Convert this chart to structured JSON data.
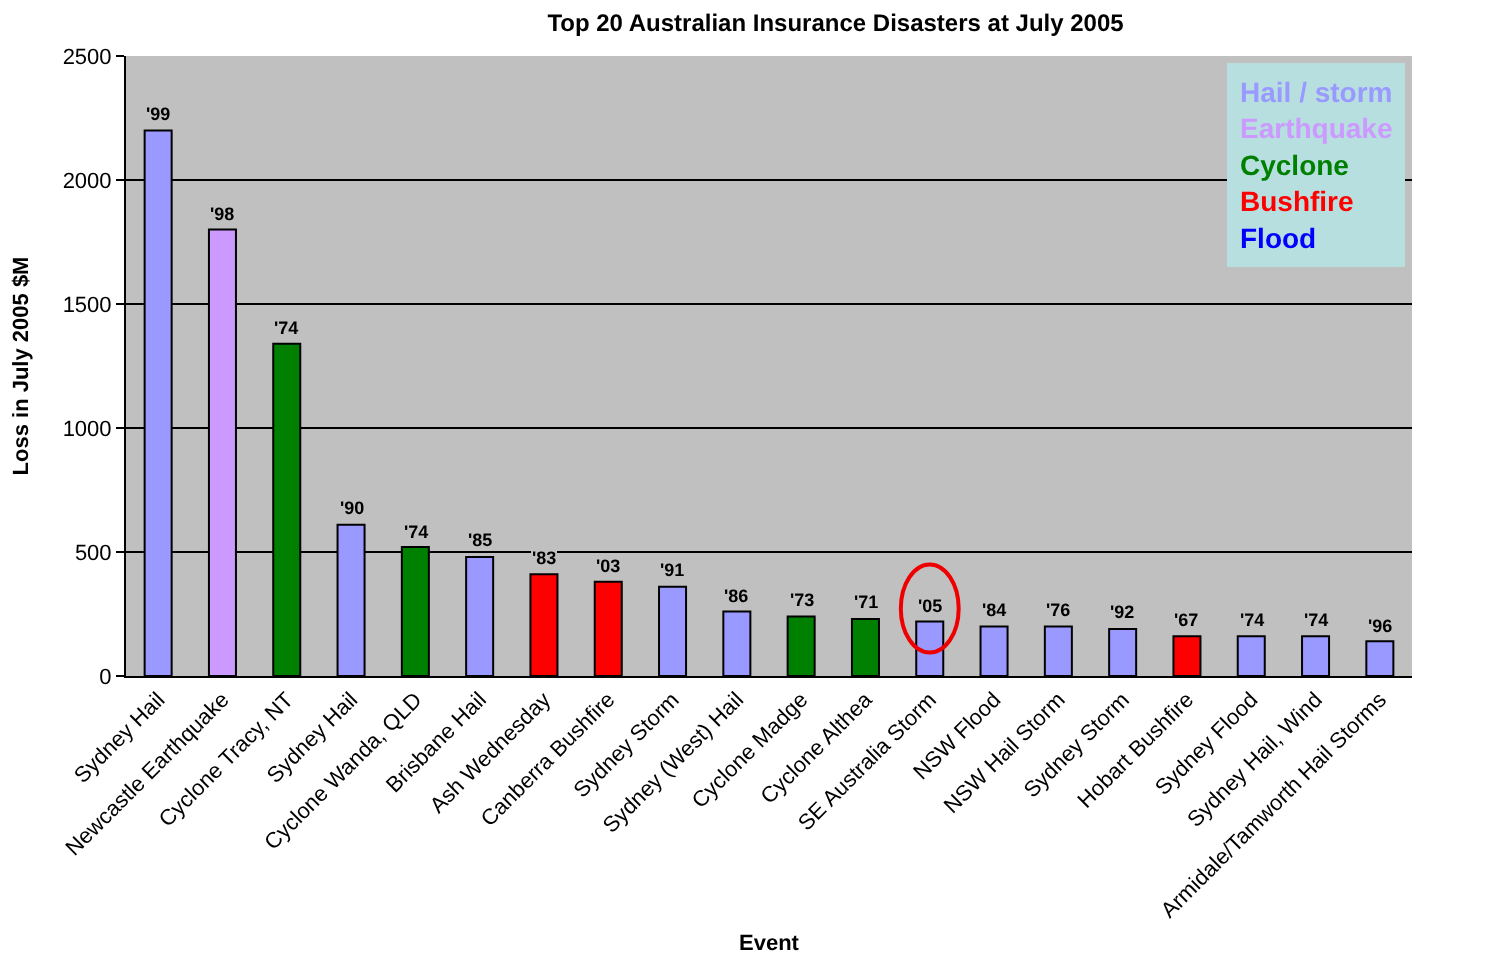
{
  "chart_data": {
    "type": "bar",
    "title": "Top 20 Australian Insurance Disasters at July 2005",
    "xlabel": "Event",
    "ylabel": "Loss in July 2005 $M",
    "categories": [
      "Sydney Hail",
      "Newcastle Earthquake",
      "Cyclone Tracy, NT",
      "Sydney Hail",
      "Cyclone Wanda, QLD",
      "Brisbane Hail",
      "Ash Wednesday",
      "Canberra Bushfire",
      "Sydney Storm",
      "Sydney (West) Hail",
      "Cyclone Madge",
      "Cyclone Althea",
      "SE Australia Storm",
      "NSW Flood",
      "NSW Hail Storm",
      "Sydney Storm",
      "Hobart Bushfire",
      "Sydney Flood",
      "Sydney Hail, Wind",
      "Armidale/Tamworth Hail Storms"
    ],
    "series": [
      {
        "name": "Hail / storm",
        "color": "#9999ff",
        "values": [
          2200,
          null,
          null,
          610,
          null,
          480,
          null,
          null,
          360,
          260,
          null,
          null,
          220,
          200,
          200,
          190,
          null,
          160,
          160,
          140
        ]
      },
      {
        "name": "Earthquake",
        "color": "#cc99ff",
        "values": [
          null,
          1800,
          null,
          null,
          null,
          null,
          null,
          null,
          null,
          null,
          null,
          null,
          null,
          null,
          null,
          null,
          null,
          null,
          null,
          null
        ]
      },
      {
        "name": "Cyclone",
        "color": "#008000",
        "values": [
          null,
          null,
          1340,
          null,
          520,
          null,
          null,
          null,
          null,
          null,
          240,
          230,
          null,
          null,
          null,
          null,
          null,
          null,
          null,
          null
        ]
      },
      {
        "name": "Bushfire",
        "color": "#ff0000",
        "values": [
          null,
          null,
          null,
          null,
          null,
          null,
          410,
          380,
          null,
          null,
          null,
          null,
          null,
          null,
          null,
          null,
          160,
          null,
          null,
          null
        ]
      },
      {
        "name": "Flood",
        "color": "#0000ff",
        "values": [
          null,
          null,
          null,
          null,
          null,
          null,
          null,
          null,
          null,
          null,
          null,
          null,
          null,
          null,
          null,
          null,
          null,
          null,
          null,
          null
        ]
      }
    ],
    "annotations": [
      {
        "text": "'99",
        "x": "Sydney Hail",
        "y": 2200
      },
      {
        "text": "'98",
        "x": "Newcastle Earthquake",
        "y": 1800
      },
      {
        "text": "'74",
        "x": "Cyclone Tracy, NT",
        "y": 1340
      },
      {
        "text": "'90",
        "y": 610
      },
      {
        "text": "'74",
        "x": "Cyclone Wanda, QLD",
        "y": 520
      },
      {
        "text": "'85",
        "x": "Brisbane Hail",
        "y": 480
      },
      {
        "text": "'83",
        "x": "Ash Wednesday",
        "y": 410
      },
      {
        "text": "'03",
        "x": "Canberra Bushfire",
        "y": 380
      },
      {
        "text": "'91",
        "x": "Sydney Storm",
        "y": 360
      },
      {
        "text": "'86",
        "x": "Sydney (West) Hail",
        "y": 260
      },
      {
        "text": "'73",
        "x": "Cyclone Madge",
        "y": 240
      },
      {
        "text": "'71",
        "x": "Cyclone Althea",
        "y": 230
      },
      {
        "text": "'05",
        "x": "SE Australia Storm",
        "y": 220
      },
      {
        "text": "'84",
        "x": "NSW Flood",
        "y": 200
      },
      {
        "text": "'76",
        "x": "NSW Hail Storm",
        "y": 200
      },
      {
        "text": "'92",
        "y": 190
      },
      {
        "text": "'67",
        "x": "Hobart Bushfire",
        "y": 160
      },
      {
        "text": "'74",
        "x": "Sydney Flood",
        "y": 160
      },
      {
        "text": "'74",
        "x": "Sydney Hail, Wind",
        "y": 160
      },
      {
        "text": "'96",
        "x": "Armidale/Tamworth Hail Storms",
        "y": 140
      }
    ],
    "ylim": [
      0,
      2500
    ],
    "yticks": [
      0,
      500,
      1000,
      1500,
      2000,
      2500
    ],
    "grid": "y",
    "legend": "top right"
  }
}
